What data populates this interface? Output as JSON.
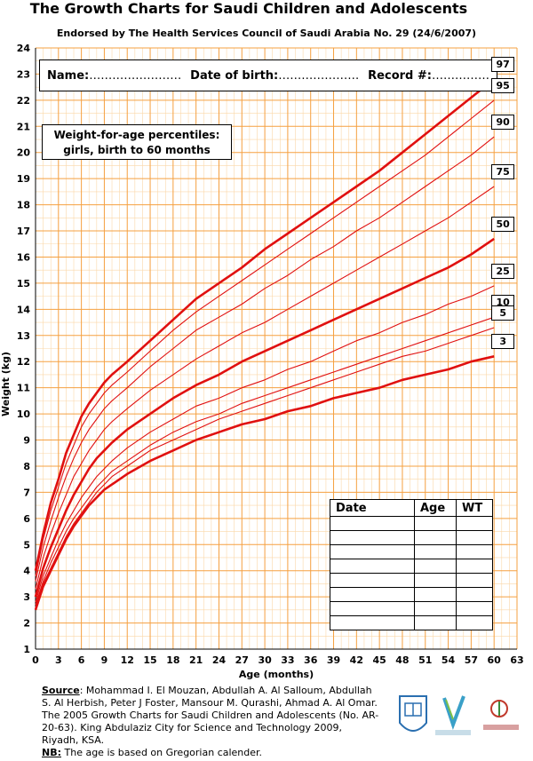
{
  "header": {
    "title": "The Growth Charts for Saudi Children and Adolescents",
    "subtitle": "Endorsed by The Health Services Council of Saudi Arabia No. 29 (24/6/2007)"
  },
  "form": {
    "name_label": "Name:",
    "name_dots": "……………………",
    "dob_label": "Date of birth:",
    "dob_dots": "…………………",
    "record_label": "Record #:",
    "record_dots": "……………"
  },
  "chart_box": {
    "line1": "Weight-for-age percentiles:",
    "line2": "girls, birth to 60 months"
  },
  "record_table": {
    "headers": [
      "Date",
      "Age",
      "WT"
    ],
    "empty_rows": 8
  },
  "source": {
    "label": "Source",
    "text": ": Mohammad I. El Mouzan, Abdullah A. Al Salloum, Abdullah S. Al Herbish, Peter J Foster, Mansour M. Qurashi, Ahmad A. Al Omar. The 2005 Growth Charts for Saudi Children and Adolescents (No. AR-20-63). King Abdulaziz City for Science and Technology 2009, Riyadh, KSA.",
    "nb_label": "NB:",
    "nb_text": " The age is based on Gregorian calender."
  },
  "colors": {
    "grid_major": "#f5a040",
    "grid_minor": "#fbd7a8",
    "curve": "#e01010"
  },
  "icons": [
    "university-logo-icon",
    "kacst-logo-icon",
    "ministry-of-health-logo-icon"
  ],
  "chart_data": {
    "type": "line",
    "xlabel": "Age (months)",
    "ylabel": "Weight (kg)",
    "xlim": [
      0,
      63
    ],
    "ylim": [
      1,
      24
    ],
    "xticks": [
      0,
      3,
      6,
      9,
      12,
      15,
      18,
      21,
      24,
      27,
      30,
      33,
      36,
      39,
      42,
      45,
      48,
      51,
      54,
      57,
      60,
      63
    ],
    "yticks": [
      1,
      2,
      3,
      4,
      5,
      6,
      7,
      8,
      9,
      10,
      11,
      12,
      13,
      14,
      15,
      16,
      17,
      18,
      19,
      20,
      21,
      22,
      23,
      24
    ],
    "grid": true,
    "x": [
      0,
      1,
      2,
      3,
      4,
      5,
      6,
      7,
      8,
      9,
      10,
      12,
      15,
      18,
      21,
      24,
      27,
      30,
      33,
      36,
      39,
      42,
      45,
      48,
      51,
      54,
      57,
      60
    ],
    "series": [
      {
        "name": "97",
        "bold": true,
        "values": [
          4.0,
          5.4,
          6.6,
          7.5,
          8.5,
          9.2,
          9.9,
          10.4,
          10.8,
          11.2,
          11.5,
          12.0,
          12.8,
          13.6,
          14.4,
          15.0,
          15.6,
          16.3,
          16.9,
          17.5,
          18.1,
          18.7,
          19.3,
          20.0,
          20.7,
          21.4,
          22.1,
          22.8
        ]
      },
      {
        "name": "95",
        "bold": false,
        "values": [
          3.8,
          5.2,
          6.3,
          7.2,
          8.1,
          8.8,
          9.5,
          10.0,
          10.4,
          10.8,
          11.1,
          11.6,
          12.4,
          13.2,
          13.9,
          14.5,
          15.1,
          15.7,
          16.3,
          16.9,
          17.5,
          18.1,
          18.7,
          19.3,
          19.9,
          20.6,
          21.3,
          22.0
        ]
      },
      {
        "name": "90",
        "bold": false,
        "values": [
          3.6,
          4.9,
          5.9,
          6.8,
          7.6,
          8.3,
          8.9,
          9.4,
          9.8,
          10.2,
          10.5,
          11.0,
          11.8,
          12.5,
          13.2,
          13.7,
          14.2,
          14.8,
          15.3,
          15.9,
          16.4,
          17.0,
          17.5,
          18.1,
          18.7,
          19.3,
          19.9,
          20.6
        ]
      },
      {
        "name": "75",
        "bold": false,
        "values": [
          3.3,
          4.5,
          5.4,
          6.2,
          6.9,
          7.6,
          8.1,
          8.6,
          9.0,
          9.4,
          9.7,
          10.2,
          10.9,
          11.5,
          12.1,
          12.6,
          13.1,
          13.5,
          14.0,
          14.5,
          15.0,
          15.5,
          16.0,
          16.5,
          17.0,
          17.5,
          18.1,
          18.7
        ]
      },
      {
        "name": "50",
        "bold": true,
        "values": [
          3.0,
          4.1,
          4.9,
          5.6,
          6.3,
          6.9,
          7.4,
          7.9,
          8.3,
          8.6,
          8.9,
          9.4,
          10.0,
          10.6,
          11.1,
          11.5,
          12.0,
          12.4,
          12.8,
          13.2,
          13.6,
          14.0,
          14.4,
          14.8,
          15.2,
          15.6,
          16.1,
          16.7
        ]
      },
      {
        "name": "25",
        "bold": false,
        "values": [
          2.8,
          3.8,
          4.5,
          5.2,
          5.8,
          6.3,
          6.8,
          7.2,
          7.6,
          7.9,
          8.2,
          8.7,
          9.3,
          9.8,
          10.3,
          10.6,
          11.0,
          11.3,
          11.7,
          12.0,
          12.4,
          12.8,
          13.1,
          13.5,
          13.8,
          14.2,
          14.5,
          14.9
        ]
      },
      {
        "name": "10",
        "bold": false,
        "values": [
          2.7,
          3.6,
          4.3,
          4.9,
          5.5,
          6.0,
          6.4,
          6.8,
          7.2,
          7.5,
          7.8,
          8.2,
          8.8,
          9.3,
          9.7,
          10.0,
          10.4,
          10.7,
          11.0,
          11.3,
          11.6,
          11.9,
          12.2,
          12.5,
          12.8,
          13.1,
          13.4,
          13.7
        ]
      },
      {
        "name": "5",
        "bold": false,
        "values": [
          2.6,
          3.5,
          4.1,
          4.7,
          5.3,
          5.8,
          6.2,
          6.6,
          7.0,
          7.3,
          7.6,
          8.0,
          8.6,
          9.0,
          9.4,
          9.8,
          10.1,
          10.4,
          10.7,
          11.0,
          11.3,
          11.6,
          11.9,
          12.2,
          12.4,
          12.7,
          13.0,
          13.3
        ]
      },
      {
        "name": "3",
        "bold": true,
        "values": [
          2.5,
          3.4,
          4.0,
          4.6,
          5.2,
          5.7,
          6.1,
          6.5,
          6.8,
          7.1,
          7.3,
          7.7,
          8.2,
          8.6,
          9.0,
          9.3,
          9.6,
          9.8,
          10.1,
          10.3,
          10.6,
          10.8,
          11.0,
          11.3,
          11.5,
          11.7,
          12.0,
          12.2
        ]
      }
    ]
  }
}
